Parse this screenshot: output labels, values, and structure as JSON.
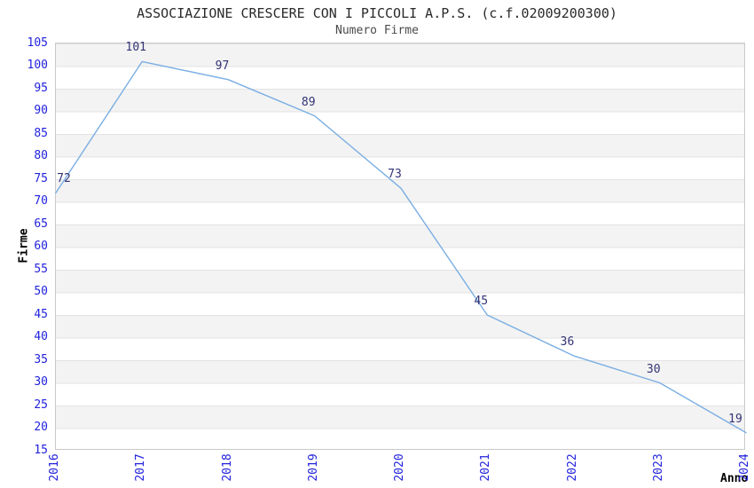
{
  "chart_data": {
    "type": "line",
    "title": "ASSOCIAZIONE CRESCERE CON I PICCOLI A.P.S. (c.f.02009200300)",
    "subtitle": "Numero Firme",
    "xlabel": "Anno",
    "ylabel": "Firme",
    "categories": [
      "2016",
      "2017",
      "2018",
      "2019",
      "2020",
      "2021",
      "2022",
      "2023",
      "2024"
    ],
    "values": [
      72,
      101,
      97,
      89,
      73,
      45,
      36,
      30,
      19
    ],
    "series_name": "Numero Firme",
    "ylim": [
      15,
      105
    ],
    "ytick_step": 5,
    "y_ticks": [
      105,
      100,
      95,
      90,
      85,
      80,
      75,
      70,
      65,
      60,
      55,
      50,
      45,
      40,
      35,
      30,
      25,
      20,
      15
    ],
    "grid": "horizontal gridlines every 5 units with alternating shaded bands",
    "legend_position": "none",
    "data_labels_visible": true
  },
  "colors": {
    "line": "#7aaee3",
    "tick_label": "#2222dd",
    "data_label": "#333377",
    "title": "#2a2a2a",
    "subtitle": "#4a4a4a",
    "axis_label": "#000000",
    "band": "#f3f3f3",
    "gridline": "#e3e3e3",
    "plot_border": "#c9c9c9",
    "background": "#ffffff"
  }
}
